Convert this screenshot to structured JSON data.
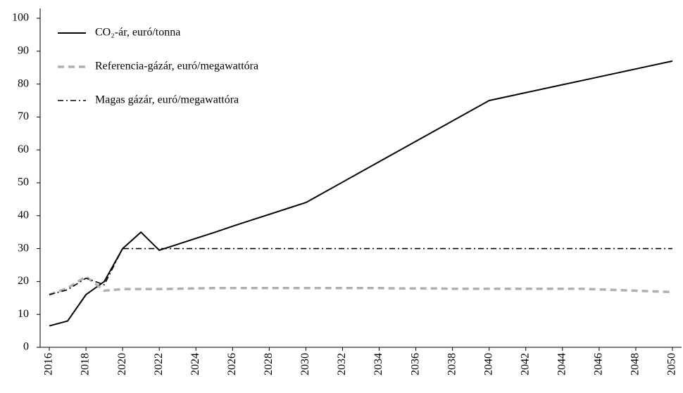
{
  "chart_data": {
    "type": "line",
    "x": [
      2016,
      2017,
      2018,
      2019,
      2020,
      2021,
      2022,
      2023,
      2024,
      2025,
      2026,
      2027,
      2028,
      2029,
      2030,
      2031,
      2032,
      2033,
      2034,
      2035,
      2036,
      2037,
      2038,
      2039,
      2040,
      2041,
      2042,
      2043,
      2044,
      2045,
      2046,
      2047,
      2048,
      2049,
      2050
    ],
    "series": [
      {
        "name": "CO₂-ár, euró/tonna",
        "color": "#000000",
        "dash": "solid",
        "values": [
          6.5,
          8,
          16,
          20,
          30,
          35,
          29.5,
          31.3,
          33.1,
          34.9,
          36.8,
          38.6,
          40.4,
          42.2,
          44,
          47.1,
          50.2,
          53.3,
          56.4,
          59.5,
          62.6,
          65.7,
          68.8,
          71.9,
          75,
          76.2,
          77.4,
          78.6,
          79.8,
          81,
          82.2,
          83.4,
          84.6,
          85.8,
          87
        ]
      },
      {
        "name": "Referencia-gázár, euró/megawattóra",
        "color": "#b0b0b0",
        "dash": "dashed",
        "values": [
          16,
          18,
          21.5,
          17.2,
          17.7,
          17.7,
          17.7,
          17.8,
          17.9,
          18,
          18,
          18,
          18,
          18,
          18,
          18,
          18,
          18,
          18,
          17.9,
          17.9,
          17.9,
          17.8,
          17.8,
          17.8,
          17.8,
          17.8,
          17.8,
          17.8,
          17.8,
          17.6,
          17.4,
          17.2,
          17,
          16.8
        ]
      },
      {
        "name": "Magas gázár, euró/megawattóra",
        "color": "#000000",
        "dash": "dashdot",
        "values": [
          16,
          17.5,
          21,
          19,
          30,
          30,
          30,
          30,
          30,
          30,
          30,
          30,
          30,
          30,
          30,
          30,
          30,
          30,
          30,
          30,
          30,
          30,
          30,
          30,
          30,
          30,
          30,
          30,
          30,
          30,
          30,
          30,
          30,
          30,
          30
        ]
      }
    ],
    "xlim": [
      2015.5,
      2050.5
    ],
    "xticks": [
      2016,
      2018,
      2020,
      2022,
      2024,
      2026,
      2028,
      2030,
      2032,
      2034,
      2036,
      2038,
      2040,
      2042,
      2044,
      2046,
      2048,
      2050
    ],
    "ylim": [
      0,
      100
    ],
    "yticks": [
      0,
      10,
      20,
      30,
      40,
      50,
      60,
      70,
      80,
      90,
      100
    ],
    "legend": "upper-left"
  }
}
